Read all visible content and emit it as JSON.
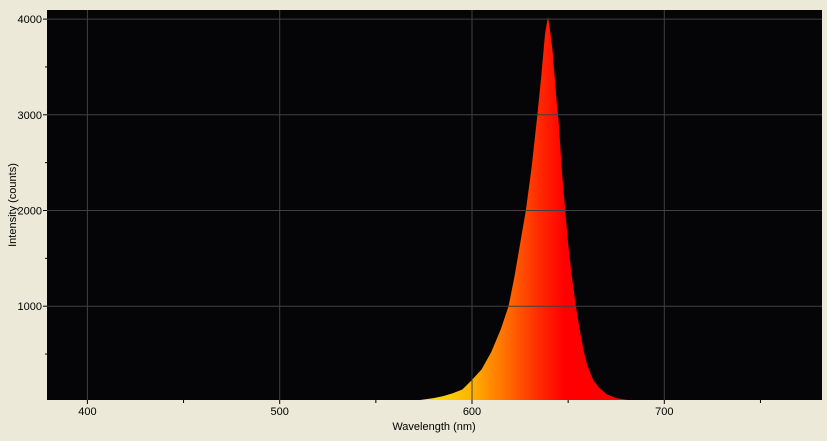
{
  "chart_data": {
    "type": "area",
    "title": "",
    "xlabel": "Wavelength (nm)",
    "ylabel": "Intensity (counts)",
    "xlim": [
      379,
      782
    ],
    "ylim": [
      20,
      4095
    ],
    "x_ticks": [
      400,
      500,
      600,
      700
    ],
    "y_ticks": [
      1000,
      2000,
      3000,
      4000
    ],
    "grid": true,
    "legend": "none",
    "colors": {
      "plot_background": "#050508",
      "grid": "#404040",
      "page_background": "#ece9d8",
      "fill_gradient": [
        "#ffe800",
        "#ffb400",
        "#ff6a00",
        "#ff2a00",
        "#ff0000"
      ]
    },
    "series": [
      {
        "x": [
          573,
          580,
          585,
          590,
          595,
          600,
          605,
          610,
          615,
          619,
          622,
          625,
          628,
          631,
          634,
          636,
          638,
          639.5,
          640.5,
          642,
          644,
          645,
          647,
          648.5,
          650,
          652,
          654,
          656,
          658,
          660,
          663,
          666,
          670,
          675,
          681
        ],
        "y": [
          20,
          40,
          60,
          90,
          130,
          230,
          340,
          520,
          760,
          1000,
          1300,
          1650,
          2000,
          2450,
          3000,
          3400,
          3850,
          4025,
          3900,
          3650,
          3150,
          2950,
          2350,
          2000,
          1650,
          1300,
          1000,
          760,
          540,
          380,
          230,
          150,
          80,
          40,
          20
        ]
      }
    ]
  }
}
